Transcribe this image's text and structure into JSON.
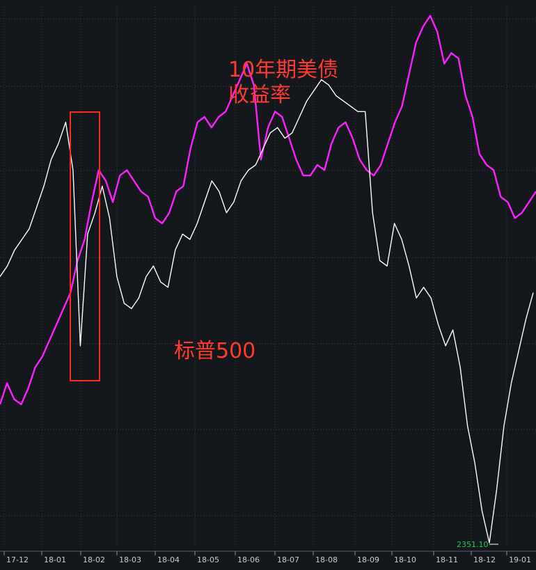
{
  "chart_data": {
    "type": "line",
    "x_ticks": [
      "17-12",
      "18-01",
      "18-02",
      "18-03",
      "18-04",
      "18-05",
      "18-06",
      "18-07",
      "18-08",
      "18-09",
      "18-10",
      "18-11",
      "18-12",
      "19-01"
    ],
    "series": [
      {
        "name": "10年期美债\n收益率",
        "color": "#ff20ff",
        "values": [
          0.26,
          0.3,
          0.27,
          0.26,
          0.29,
          0.33,
          0.35,
          0.38,
          0.41,
          0.44,
          0.47,
          0.53,
          0.57,
          0.64,
          0.7,
          0.68,
          0.64,
          0.69,
          0.7,
          0.68,
          0.66,
          0.65,
          0.61,
          0.6,
          0.62,
          0.66,
          0.67,
          0.74,
          0.79,
          0.8,
          0.78,
          0.8,
          0.81,
          0.84,
          0.87,
          0.9,
          0.86,
          0.72,
          0.78,
          0.81,
          0.8,
          0.76,
          0.72,
          0.69,
          0.69,
          0.71,
          0.7,
          0.75,
          0.78,
          0.79,
          0.76,
          0.72,
          0.7,
          0.69,
          0.71,
          0.75,
          0.79,
          0.82,
          0.88,
          0.94,
          0.97,
          0.99,
          0.96,
          0.9,
          0.92,
          0.91,
          0.84,
          0.8,
          0.73,
          0.71,
          0.7,
          0.65,
          0.64,
          0.61,
          0.62,
          0.64,
          0.66
        ],
        "annotation": "10年期美债\n收益率"
      },
      {
        "name": "标普500",
        "color": "#ffffff",
        "values": [
          0.5,
          0.52,
          0.55,
          0.57,
          0.59,
          0.63,
          0.67,
          0.72,
          0.75,
          0.79,
          0.7,
          0.37,
          0.58,
          0.62,
          0.67,
          0.61,
          0.5,
          0.45,
          0.44,
          0.46,
          0.5,
          0.52,
          0.49,
          0.48,
          0.55,
          0.58,
          0.57,
          0.6,
          0.64,
          0.68,
          0.66,
          0.62,
          0.64,
          0.68,
          0.7,
          0.71,
          0.74,
          0.77,
          0.78,
          0.76,
          0.77,
          0.8,
          0.83,
          0.85,
          0.87,
          0.86,
          0.84,
          0.83,
          0.82,
          0.81,
          0.81,
          0.62,
          0.53,
          0.52,
          0.6,
          0.57,
          0.52,
          0.46,
          0.48,
          0.46,
          0.41,
          0.37,
          0.4,
          0.33,
          0.22,
          0.15,
          0.06,
          0.0,
          0.1,
          0.22,
          0.3,
          0.36,
          0.42,
          0.47
        ],
        "annotation": "标普500"
      }
    ],
    "min_marker_label": "2351.10",
    "highlight_region": {
      "x_label_start": "18-01",
      "x_label_end": "18-02"
    },
    "grid": true,
    "legend": "none"
  }
}
